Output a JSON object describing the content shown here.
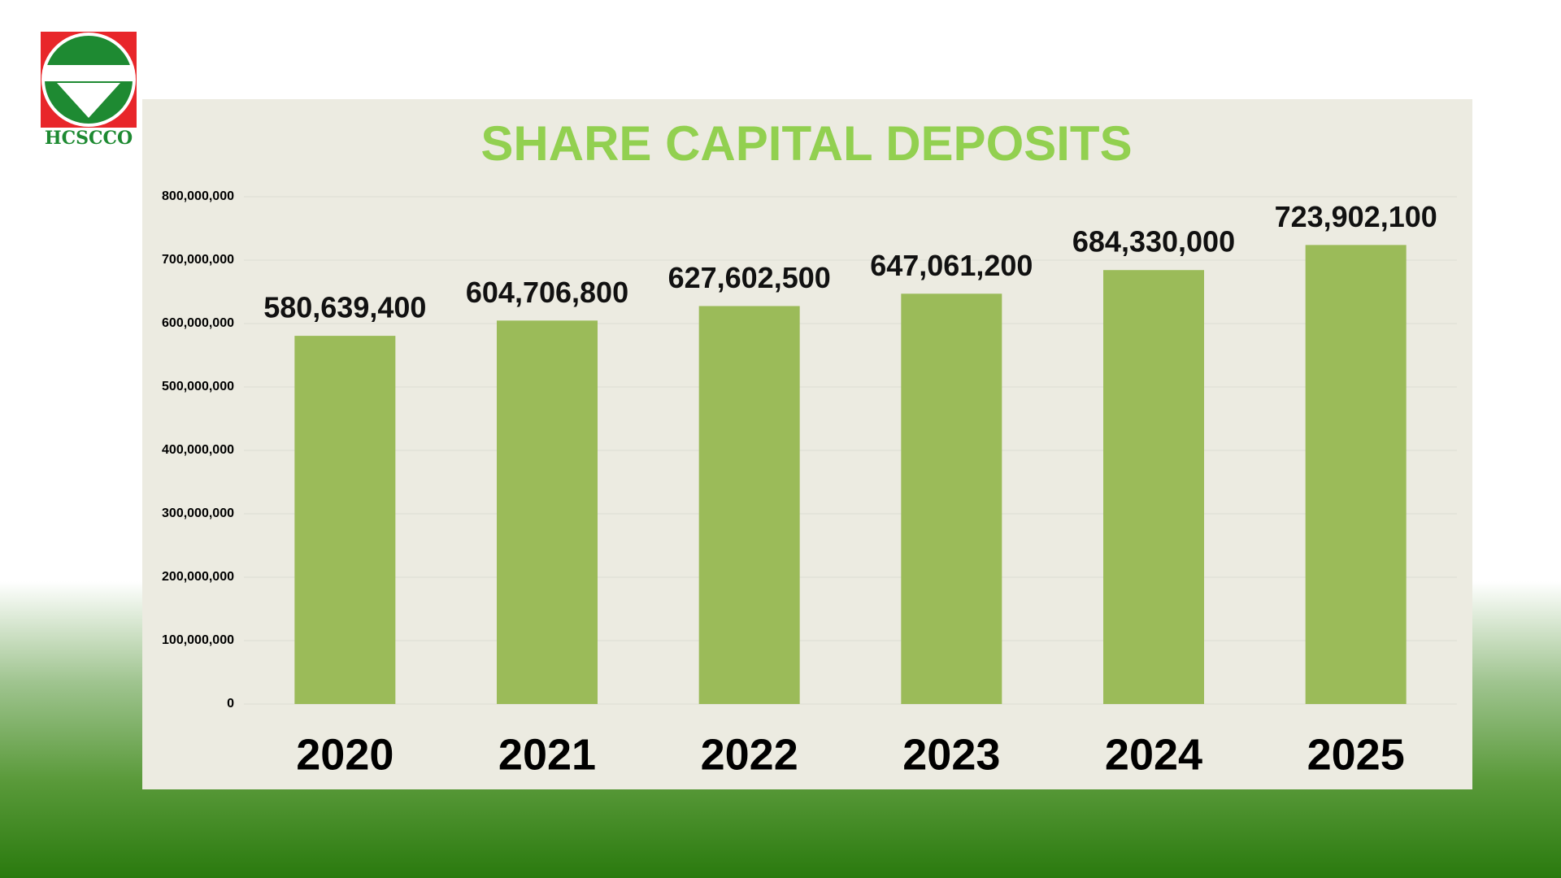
{
  "logo_text": "HCSCCO",
  "chart_data": {
    "type": "bar",
    "title": "SHARE CAPITAL DEPOSITS",
    "categories": [
      "2020",
      "2021",
      "2022",
      "2023",
      "2024",
      "2025"
    ],
    "values": [
      580639400,
      604706800,
      627602500,
      647061200,
      684330000,
      723902100
    ],
    "value_labels": [
      "580,639,400",
      "604,706,800",
      "627,602,500",
      "647,061,200",
      "684,330,000",
      "723,902,100"
    ],
    "color": "#9bbb59",
    "ylim": [
      0,
      800000000
    ],
    "yticks": [
      0,
      {
        "value": 100000000,
        "label": "100,000,000"
      },
      {
        "value": 200000000,
        "label": "200,000,000"
      },
      {
        "value": 300000000,
        "label": "300,000,000"
      },
      {
        "value": 400000000,
        "label": "400,000,000"
      },
      {
        "value": 500000000,
        "label": "500,000,000"
      },
      {
        "value": 600000000,
        "label": "600,000,000"
      },
      {
        "value": 700000000,
        "label": "700,000,000"
      },
      {
        "value": 800000000,
        "label": "800,000,000"
      }
    ],
    "grid": true
  }
}
